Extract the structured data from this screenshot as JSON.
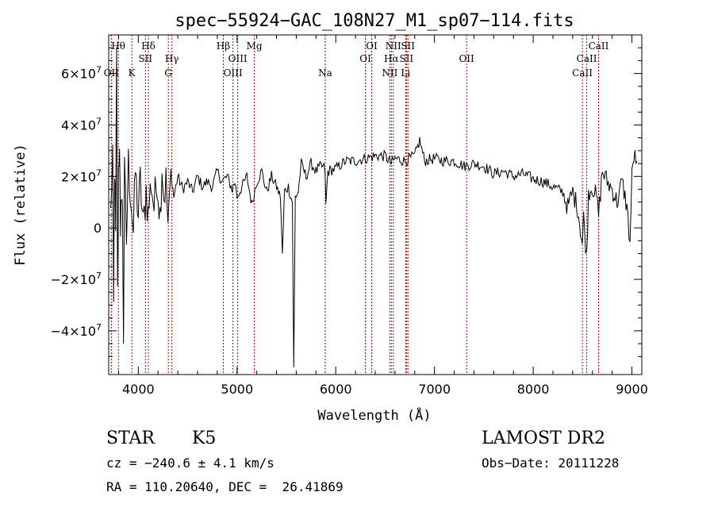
{
  "chart_data": {
    "type": "line",
    "title": "spec−55924−GAC_108N27_M1_sp07−114.fits",
    "xlabel": "Wavelength (Å)",
    "ylabel": "Flux (relative)",
    "xlim": [
      3700,
      9100
    ],
    "ylim": [
      -57000000.0,
      75000000.0
    ],
    "x_ticks": [
      {
        "value": 4000,
        "label": "4000"
      },
      {
        "value": 5000,
        "label": "5000"
      },
      {
        "value": 6000,
        "label": "6000"
      },
      {
        "value": 7000,
        "label": "7000"
      },
      {
        "value": 8000,
        "label": "8000"
      },
      {
        "value": 9000,
        "label": "9000"
      }
    ],
    "y_ticks": [
      {
        "value": -40000000,
        "mant": "−4×10",
        "exp": "7"
      },
      {
        "value": -20000000,
        "mant": "−2×10",
        "exp": "7"
      },
      {
        "value": 0,
        "mant": "0",
        "exp": ""
      },
      {
        "value": 20000000,
        "mant": "2×10",
        "exp": "7"
      },
      {
        "value": 40000000,
        "mant": "4×10",
        "exp": "7"
      },
      {
        "value": 60000000,
        "mant": "6×10",
        "exp": "7"
      }
    ],
    "grid": false,
    "spectrum_points": [
      [
        3720,
        5000000.0
      ],
      [
        3740,
        30000000.0
      ],
      [
        3750,
        -32000000.0
      ],
      [
        3760,
        25000000.0
      ],
      [
        3770,
        -5000000.0
      ],
      [
        3780,
        66000000.0
      ],
      [
        3790,
        -28000000.0
      ],
      [
        3800,
        22000000.0
      ],
      [
        3810,
        36000000.0
      ],
      [
        3820,
        -10000000.0
      ],
      [
        3830,
        18000000.0
      ],
      [
        3840,
        5000000.0
      ],
      [
        3850,
        -41000000.0
      ],
      [
        3860,
        20000000.0
      ],
      [
        3880,
        -5000000.0
      ],
      [
        3900,
        25000000.0
      ],
      [
        3930,
        10000000.0
      ],
      [
        3950,
        -2000000.0
      ],
      [
        3970,
        22000000.0
      ],
      [
        4000,
        5000000.0
      ],
      [
        4020,
        18000000.0
      ],
      [
        4050,
        0
      ],
      [
        4080,
        15000000.0
      ],
      [
        4100,
        5000000.0
      ],
      [
        4130,
        18000000.0
      ],
      [
        4160,
        8000000.0
      ],
      [
        4190,
        20000000.0
      ],
      [
        4220,
        5000000.0
      ],
      [
        4240,
        25000000.0
      ],
      [
        4260,
        12000000.0
      ],
      [
        4280,
        18000000.0
      ],
      [
        4300,
        2000000.0
      ],
      [
        4330,
        22000000.0
      ],
      [
        4360,
        12000000.0
      ],
      [
        4400,
        20000000.0
      ],
      [
        4450,
        15000000.0
      ],
      [
        4500,
        18000000.0
      ],
      [
        4550,
        14000000.0
      ],
      [
        4600,
        20000000.0
      ],
      [
        4650,
        16000000.0
      ],
      [
        4700,
        18000000.0
      ],
      [
        4750,
        16000000.0
      ],
      [
        4800,
        22000000.0
      ],
      [
        4850,
        18000000.0
      ],
      [
        4900,
        20000000.0
      ],
      [
        4950,
        15000000.0
      ],
      [
        4980,
        18000000.0
      ],
      [
        5000,
        12000000.0
      ],
      [
        5050,
        16000000.0
      ],
      [
        5100,
        20000000.0
      ],
      [
        5150,
        9000000.0
      ],
      [
        5200,
        18000000.0
      ],
      [
        5250,
        22000000.0
      ],
      [
        5300,
        14000000.0
      ],
      [
        5350,
        20000000.0
      ],
      [
        5400,
        16000000.0
      ],
      [
        5440,
        12000000.0
      ],
      [
        5460,
        -11000000.0
      ],
      [
        5480,
        14000000.0
      ],
      [
        5520,
        16000000.0
      ],
      [
        5560,
        10000000.0
      ],
      [
        5575,
        -55000000.0
      ],
      [
        5590,
        12000000.0
      ],
      [
        5620,
        14000000.0
      ],
      [
        5650,
        25000000.0
      ],
      [
        5700,
        20000000.0
      ],
      [
        5750,
        25000000.0
      ],
      [
        5800,
        22000000.0
      ],
      [
        5850,
        24000000.0
      ],
      [
        5890,
        23000000.0
      ],
      [
        5900,
        9000000.0
      ],
      [
        5920,
        22000000.0
      ],
      [
        6000,
        23000000.0
      ],
      [
        6100,
        26000000.0
      ],
      [
        6200,
        26000000.0
      ],
      [
        6300,
        27000000.0
      ],
      [
        6400,
        28000000.0
      ],
      [
        6500,
        28000000.0
      ],
      [
        6563,
        25000000.0
      ],
      [
        6600,
        27000000.0
      ],
      [
        6700,
        26000000.0
      ],
      [
        6800,
        28000000.0
      ],
      [
        6850,
        34000000.0
      ],
      [
        6900,
        26000000.0
      ],
      [
        7000,
        27000000.0
      ],
      [
        7100,
        26000000.0
      ],
      [
        7200,
        26000000.0
      ],
      [
        7300,
        24000000.0
      ],
      [
        7400,
        25000000.0
      ],
      [
        7500,
        24000000.0
      ],
      [
        7600,
        21000000.0
      ],
      [
        7700,
        22000000.0
      ],
      [
        7800,
        20000000.0
      ],
      [
        7900,
        21000000.0
      ],
      [
        8000,
        19000000.0
      ],
      [
        8100,
        18000000.0
      ],
      [
        8200,
        16000000.0
      ],
      [
        8300,
        14000000.0
      ],
      [
        8350,
        8000000.0
      ],
      [
        8400,
        14000000.0
      ],
      [
        8450,
        8000000.0
      ],
      [
        8498,
        -6000000.0
      ],
      [
        8510,
        4000000.0
      ],
      [
        8542,
        -11000000.0
      ],
      [
        8560,
        14000000.0
      ],
      [
        8600,
        16000000.0
      ],
      [
        8640,
        12000000.0
      ],
      [
        8662,
        5000000.0
      ],
      [
        8700,
        22000000.0
      ],
      [
        8750,
        18000000.0
      ],
      [
        8800,
        15000000.0
      ],
      [
        8850,
        10000000.0
      ],
      [
        8900,
        18000000.0
      ],
      [
        8950,
        8000000.0
      ],
      [
        8980,
        -6000000.0
      ],
      [
        9000,
        20000000.0
      ],
      [
        9020,
        28000000.0
      ],
      [
        9050,
        26000000.0
      ]
    ],
    "line_color": "#000000",
    "marker_color": "#b00000",
    "line_markers": [
      {
        "x": 3727,
        "label": "OII",
        "row": 3
      },
      {
        "x": 3798,
        "label": "Hθ",
        "row": 0
      },
      {
        "x": 3934,
        "label": "K",
        "row": 3
      },
      {
        "x": 4072,
        "label": "SII",
        "row": 2
      },
      {
        "x": 4102,
        "label": "Hδ",
        "row": 1
      },
      {
        "x": 4304,
        "label": "G",
        "row": 3
      },
      {
        "x": 4340,
        "label": "Hγ",
        "row": 2
      },
      {
        "x": 4861,
        "label": "Hβ",
        "row": 0
      },
      {
        "x": 4959,
        "label": "OIII",
        "row": 3
      },
      {
        "x": 5007,
        "label": "OIII",
        "row": 2
      },
      {
        "x": 5175,
        "label": "Mg",
        "row": 0
      },
      {
        "x": 5893,
        "label": "Na",
        "row": 3
      },
      {
        "x": 6300,
        "label": "OI",
        "row": 2
      },
      {
        "x": 6364,
        "label": "OI",
        "row": 0
      },
      {
        "x": 6548,
        "label": "NII",
        "row": 3
      },
      {
        "x": 6563,
        "label": "Hα",
        "row": 2
      },
      {
        "x": 6583,
        "label": "NII",
        "row": 0
      },
      {
        "x": 6708,
        "label": "Li",
        "row": 3
      },
      {
        "x": 6716,
        "label": "SII",
        "row": 2
      },
      {
        "x": 6731,
        "label": "SII",
        "row": 0
      },
      {
        "x": 7325,
        "label": "OII",
        "row": 2
      },
      {
        "x": 8498,
        "label": "CaII",
        "row": 3
      },
      {
        "x": 8542,
        "label": "CaII",
        "row": 2
      },
      {
        "x": 8662,
        "label": "CaII",
        "row": 0
      }
    ]
  },
  "info": {
    "class": "STAR",
    "subclass": "K5",
    "survey": "LAMOST DR2",
    "cz": "cz = −240.6 ± 4.1 km/s",
    "obs_date": "Obs−Date: 20111228",
    "coords": "RA = 110.20640, DEC =  26.41869"
  }
}
